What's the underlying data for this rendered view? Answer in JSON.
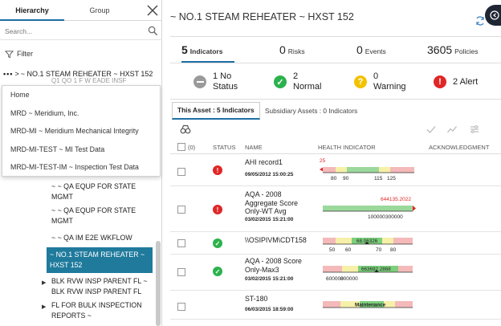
{
  "left": {
    "tabs": [
      "Hierarchy",
      "Group"
    ],
    "search_placeholder": "Search...",
    "filter_label": "Filter",
    "current_path": "~ NO.1 STEAM REHEATER ~ HXST 152",
    "ghost_text": "Q1 QO 1 F W EADE INSF",
    "dropdown": [
      "Home",
      "MRD ~ Meridium, Inc.",
      "MRD-MI ~ Meridium Mechanical Integrity",
      "MRD-MI-TEST ~ MI Test Data",
      "MRD-MI-TEST-IM ~ Inspection Test Data"
    ],
    "tree": [
      "~ ~ QA EQUP FOR STATE MGMT",
      "~ ~ QA EQUP FOR STATE MGMT",
      "~ ~ QA IM E2E WKFLOW",
      "~ NO.1 STEAM REHEATER ~ HXST 152",
      "BLK RVW INSP PARENT FL ~ BLK RVW INSP PARENT FL",
      "FL FOR BULK INSPECTION REPORTS ~"
    ]
  },
  "right": {
    "title": "~ NO.1 STEAM REHEATER ~ HXST 152",
    "stats": [
      {
        "value": "5",
        "label": "Indicators"
      },
      {
        "value": "0",
        "label": "Risks"
      },
      {
        "value": "0",
        "label": "Events"
      },
      {
        "value": "3605",
        "label": "Policies"
      }
    ],
    "summary": [
      {
        "value": "1 No",
        "label": "Status"
      },
      {
        "value": "2",
        "label": "Normal"
      },
      {
        "value": "0",
        "label": "Warning"
      },
      {
        "value": "2 Alert",
        "label": ""
      }
    ],
    "subtabs": [
      "This Asset : 5 Indicators",
      "Subsidiary Assets : 0 Indicators"
    ],
    "columns": {
      "count": "(0)",
      "status": "STATUS",
      "name": "NAME",
      "health": "HEALTH INDICATOR",
      "ack": "ACKNOWLEDGMENT"
    },
    "rows": [
      {
        "name": "AHI record1",
        "date": "09/05/2012 15:00:25",
        "status": "alert",
        "value_label": "25",
        "ticks": [
          "80",
          "90",
          "115",
          "125"
        ]
      },
      {
        "name": "AQA - 2008 Aggregate Score Only-WT Avg",
        "date": "03/02/2015 15:21:00",
        "status": "alert",
        "value_label": "644135.2022",
        "ticks": [
          "100000",
          "300000"
        ]
      },
      {
        "name": "\\\\OSIPIVM\\CDT158",
        "date": "",
        "status": "normal",
        "value_label": "68.06326",
        "ticks": [
          "50",
          "60",
          "70",
          "80"
        ]
      },
      {
        "name": "AQA - 2008 Score Only-Max3",
        "date": "03/02/2015 15:21:00",
        "status": "normal",
        "value_label": "663692.2868",
        "ticks": [
          "600000",
          "800000"
        ]
      },
      {
        "name": "ST-180",
        "date": "06/03/2015 18:59:00",
        "status": "none",
        "value_label": "Maintenance",
        "ticks": []
      }
    ]
  },
  "colors": {
    "accent": "#1d6fa5",
    "selected": "#1f7a9c",
    "alert": "#e02626",
    "normal": "#2bb24c",
    "warning": "#f2c200",
    "nostatus": "#9a9a9a",
    "band_red": "#f4b9b9",
    "band_yellow": "#f6f0a8",
    "band_green": "#9bd89b"
  }
}
